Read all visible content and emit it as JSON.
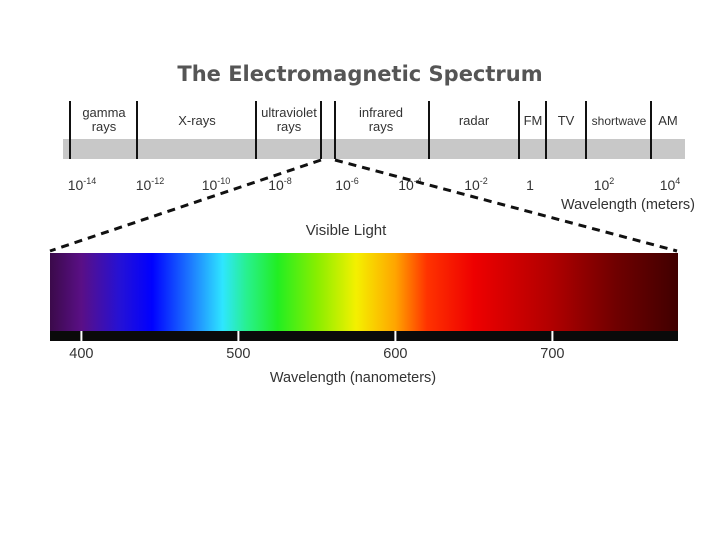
{
  "title": "The Electromagnetic Spectrum",
  "em_spectrum": {
    "bands": [
      {
        "lines": [
          "gamma",
          "rays"
        ]
      },
      {
        "lines": [
          "X-rays"
        ]
      },
      {
        "lines": [
          "ultraviolet",
          "rays"
        ]
      },
      {
        "lines": [
          "infrared",
          "rays"
        ]
      },
      {
        "lines": [
          "radar"
        ]
      },
      {
        "lines": [
          "FM"
        ]
      },
      {
        "lines": [
          "TV"
        ]
      },
      {
        "lines": [
          "shortwave"
        ]
      },
      {
        "lines": [
          "AM"
        ]
      }
    ],
    "ticks": [
      {
        "base": "10",
        "exp": "-14"
      },
      {
        "base": "10",
        "exp": "-12"
      },
      {
        "base": "10",
        "exp": "-10"
      },
      {
        "base": "10",
        "exp": "-8"
      },
      {
        "base": "10",
        "exp": "-6"
      },
      {
        "base": "10",
        "exp": "-4"
      },
      {
        "base": "10",
        "exp": "-2"
      },
      {
        "base": "1",
        "exp": ""
      },
      {
        "base": "10",
        "exp": "2"
      },
      {
        "base": "10",
        "exp": "4"
      }
    ],
    "axis_label": "Wavelength (meters)"
  },
  "visible_light": {
    "label": "Visible Light",
    "range_nm": [
      380,
      780
    ],
    "colors": [
      {
        "nm": 380,
        "color": "#3b0a4a"
      },
      {
        "nm": 400,
        "color": "#5a0f86"
      },
      {
        "nm": 425,
        "color": "#2411d6"
      },
      {
        "nm": 445,
        "color": "#0000ff"
      },
      {
        "nm": 470,
        "color": "#1d7cff"
      },
      {
        "nm": 490,
        "color": "#2ee6ff"
      },
      {
        "nm": 505,
        "color": "#28f090"
      },
      {
        "nm": 525,
        "color": "#22ee22"
      },
      {
        "nm": 550,
        "color": "#88ee00"
      },
      {
        "nm": 575,
        "color": "#f4f000"
      },
      {
        "nm": 600,
        "color": "#ffa500"
      },
      {
        "nm": 620,
        "color": "#ff3300"
      },
      {
        "nm": 650,
        "color": "#ee0000"
      },
      {
        "nm": 700,
        "color": "#b00000"
      },
      {
        "nm": 740,
        "color": "#700000"
      },
      {
        "nm": 780,
        "color": "#400000"
      }
    ],
    "ticks": [
      "400",
      "500",
      "600",
      "700"
    ],
    "axis_label": "Wavelength (nanometers)"
  }
}
